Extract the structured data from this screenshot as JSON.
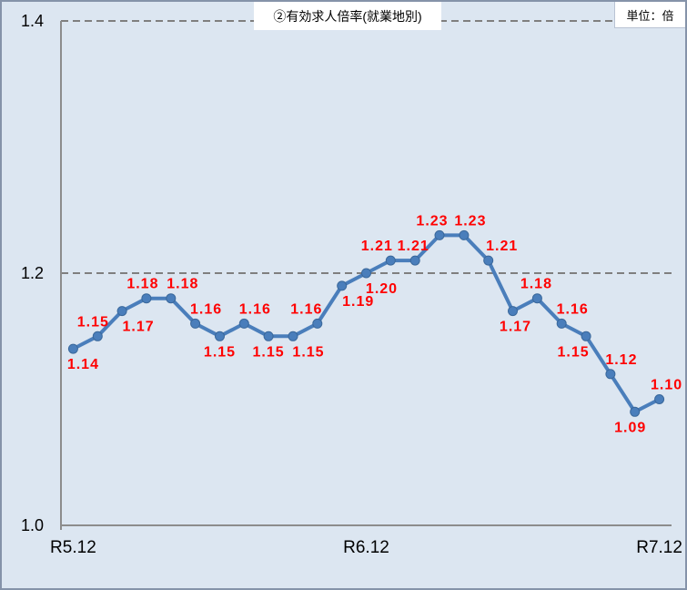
{
  "header": {
    "title": "②有効求人倍率(就業地別)",
    "unit_label": "単位：倍"
  },
  "colors": {
    "background": "#dce6f1",
    "frame_border": "#8593a9",
    "line": "#4a7ebb",
    "marker": "#4a7ebb",
    "marker_edge": "#3a689b",
    "data_label": "#ff0000",
    "grid": "#7f7f7f",
    "axis": "#8c8c8c",
    "text": "#000000"
  },
  "chart_data": {
    "type": "line",
    "title": "②有効求人倍率(就業地別)",
    "unit": "単位：倍",
    "legend": "none",
    "grid_style": "dashed",
    "ylim": [
      1.0,
      1.4
    ],
    "gridlines": [
      1.2,
      1.4
    ],
    "y_ticks": [
      {
        "label": "1.4",
        "value": 1.4
      },
      {
        "label": "1.2",
        "value": 1.2
      },
      {
        "label": "1.0",
        "value": 1.0
      }
    ],
    "x_ticks": [
      {
        "label": "R5.12",
        "index": 0
      },
      {
        "label": "R6.12",
        "index": 12
      },
      {
        "label": "R7.12",
        "index": 24
      }
    ],
    "values": [
      1.14,
      1.15,
      1.17,
      1.18,
      1.18,
      1.16,
      1.15,
      1.16,
      1.15,
      1.15,
      1.16,
      1.19,
      1.2,
      1.21,
      1.21,
      1.23,
      1.23,
      1.21,
      1.17,
      1.18,
      1.16,
      1.15,
      1.12,
      1.09,
      1.1
    ],
    "labels": [
      "1.14",
      "1.15",
      "1.17",
      "1.18",
      "1.18",
      "1.16",
      "1.15",
      "1.16",
      "1.15",
      "1.15",
      "1.16",
      "1.19",
      "1.20",
      "1.21",
      "1.21",
      "1.23",
      "1.23",
      "1.21",
      "1.17",
      "1.18",
      "1.16",
      "1.15",
      "1.12",
      "1.09",
      "1.10"
    ],
    "label_layout": [
      {
        "pos": "below",
        "dx": 11
      },
      {
        "pos": "above",
        "dx": -5
      },
      {
        "pos": "below",
        "dx": 18
      },
      {
        "pos": "above",
        "dx": -4
      },
      {
        "pos": "above",
        "dx": 13
      },
      {
        "pos": "above",
        "dx": 12
      },
      {
        "pos": "below",
        "dx": 0
      },
      {
        "pos": "above",
        "dx": 12
      },
      {
        "pos": "below",
        "dx": 0
      },
      {
        "pos": "below",
        "dx": 17
      },
      {
        "pos": "above",
        "dx": -12
      },
      {
        "pos": "below",
        "dx": 18
      },
      {
        "pos": "below",
        "dx": 17
      },
      {
        "pos": "above",
        "dx": -15
      },
      {
        "pos": "above",
        "dx": -2
      },
      {
        "pos": "above",
        "dx": -8
      },
      {
        "pos": "above",
        "dx": 7
      },
      {
        "pos": "above",
        "dx": 15
      },
      {
        "pos": "below",
        "dx": 3
      },
      {
        "pos": "above",
        "dx": -1
      },
      {
        "pos": "above",
        "dx": 12
      },
      {
        "pos": "below",
        "dx": -14
      },
      {
        "pos": "above",
        "dx": 12
      },
      {
        "pos": "below",
        "dx": -5
      },
      {
        "pos": "above",
        "dx": 8
      }
    ]
  }
}
